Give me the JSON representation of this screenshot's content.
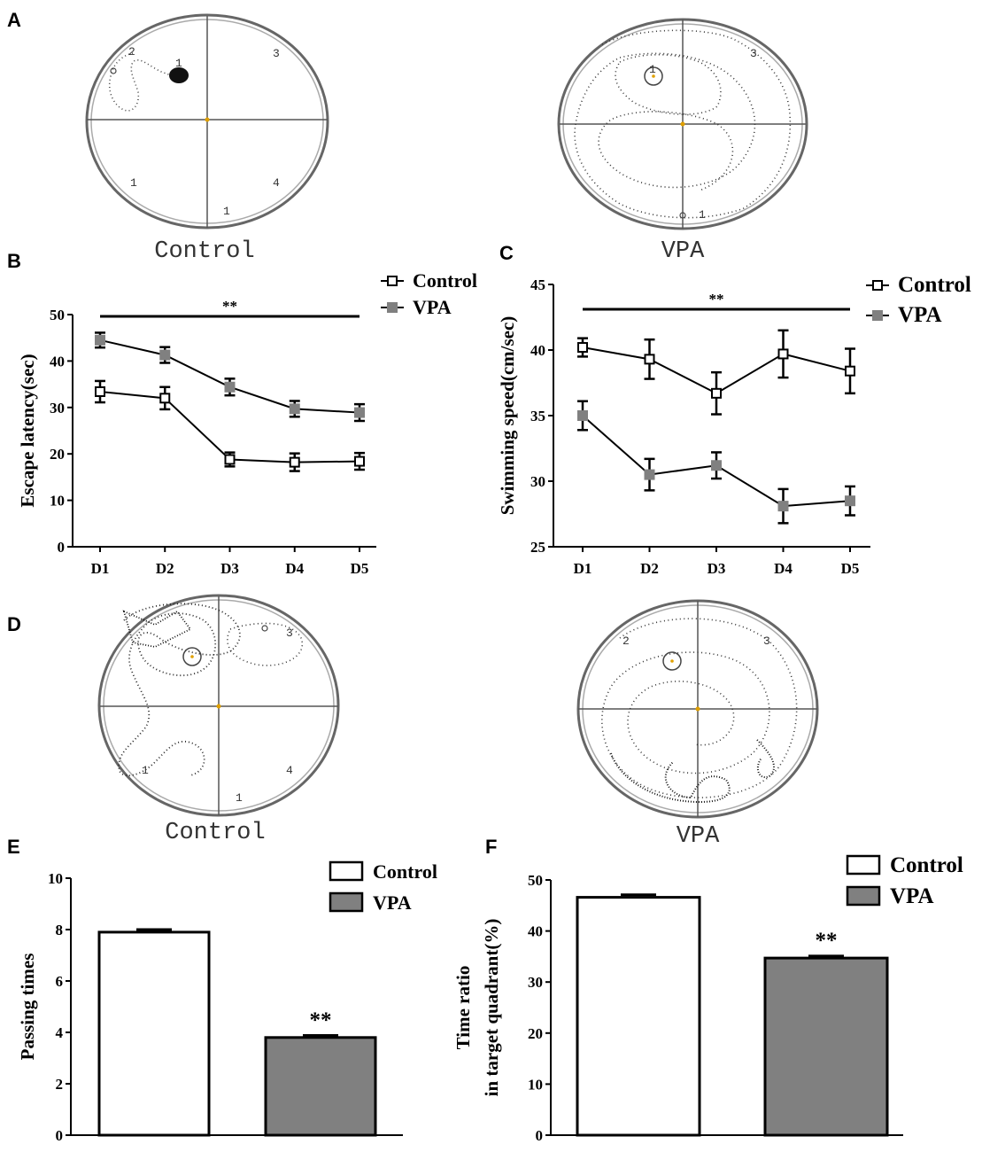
{
  "panels": {
    "A": {
      "letter": "A",
      "left_caption": "Control",
      "right_caption": "VPA"
    },
    "D": {
      "letter": "D",
      "left_caption": "Control",
      "right_caption": "VPA"
    },
    "B": {
      "letter": "B"
    },
    "C": {
      "letter": "C"
    },
    "E": {
      "letter": "E"
    },
    "F": {
      "letter": "F"
    }
  },
  "tracks": {
    "A_control": {
      "labels": [
        "2",
        "1",
        "3",
        "1",
        "4",
        "1"
      ]
    },
    "A_vpa": {
      "labels": [
        "1",
        "3",
        "1"
      ]
    },
    "D_control": {
      "labels": [
        "3",
        "1",
        "4",
        "1"
      ]
    },
    "D_vpa": {
      "labels": [
        "2",
        "3"
      ]
    }
  },
  "chart_data": [
    {
      "id": "B",
      "type": "line",
      "categories": [
        "D1",
        "D2",
        "D3",
        "D4",
        "D5"
      ],
      "series": [
        {
          "name": "Control",
          "values": [
            33.4,
            32.0,
            18.8,
            18.2,
            18.4
          ],
          "errors": [
            2.3,
            2.4,
            1.5,
            1.9,
            1.8
          ],
          "color": "#000000",
          "marker": "open-square"
        },
        {
          "name": "VPA",
          "values": [
            44.5,
            41.3,
            34.4,
            29.7,
            28.9
          ],
          "errors": [
            1.6,
            1.7,
            1.8,
            1.7,
            1.8
          ],
          "color": "#808080",
          "marker": "filled-square"
        }
      ],
      "ylabel": "Escape latency(sec)",
      "xlabel": "",
      "ylim": [
        0,
        50
      ],
      "yticks": [
        "0",
        "10",
        "20",
        "30",
        "40",
        "50"
      ],
      "significance": "**"
    },
    {
      "id": "C",
      "type": "line",
      "categories": [
        "D1",
        "D2",
        "D3",
        "D4",
        "D5"
      ],
      "series": [
        {
          "name": "Control",
          "values": [
            40.2,
            39.3,
            36.7,
            39.7,
            38.4
          ],
          "errors": [
            0.7,
            1.5,
            1.6,
            1.8,
            1.7
          ],
          "color": "#000000",
          "marker": "open-square"
        },
        {
          "name": "VPA",
          "values": [
            35.0,
            30.5,
            31.2,
            28.1,
            28.5
          ],
          "errors": [
            1.1,
            1.2,
            1.0,
            1.3,
            1.1
          ],
          "color": "#808080",
          "marker": "filled-square"
        }
      ],
      "ylabel": "Swimming speed(cm/sec)",
      "xlabel": "",
      "ylim": [
        25,
        45
      ],
      "yticks": [
        "25",
        "30",
        "35",
        "40",
        "45"
      ],
      "significance": "**"
    },
    {
      "id": "E",
      "type": "bar",
      "categories": [
        "Control",
        "VPA"
      ],
      "values": [
        7.9,
        3.8
      ],
      "errors": [
        0.1,
        0.08
      ],
      "colors": [
        "#ffffff",
        "#808080"
      ],
      "ylabel": "Passing times",
      "ylim": [
        0,
        10
      ],
      "yticks": [
        "0",
        "2",
        "4",
        "6",
        "8",
        "10"
      ],
      "significance": "**",
      "legend": [
        "Control",
        "VPA"
      ]
    },
    {
      "id": "F",
      "type": "bar",
      "categories": [
        "Control",
        "VPA"
      ],
      "values": [
        46.6,
        34.7
      ],
      "errors": [
        0.5,
        0.4
      ],
      "colors": [
        "#ffffff",
        "#808080"
      ],
      "ylabel_lines": [
        "Time ratio",
        "in target quadrant(%)"
      ],
      "ylim": [
        0,
        50
      ],
      "yticks": [
        "0",
        "10",
        "20",
        "30",
        "40",
        "50"
      ],
      "significance": "**",
      "legend": [
        "Control",
        "VPA"
      ]
    }
  ]
}
